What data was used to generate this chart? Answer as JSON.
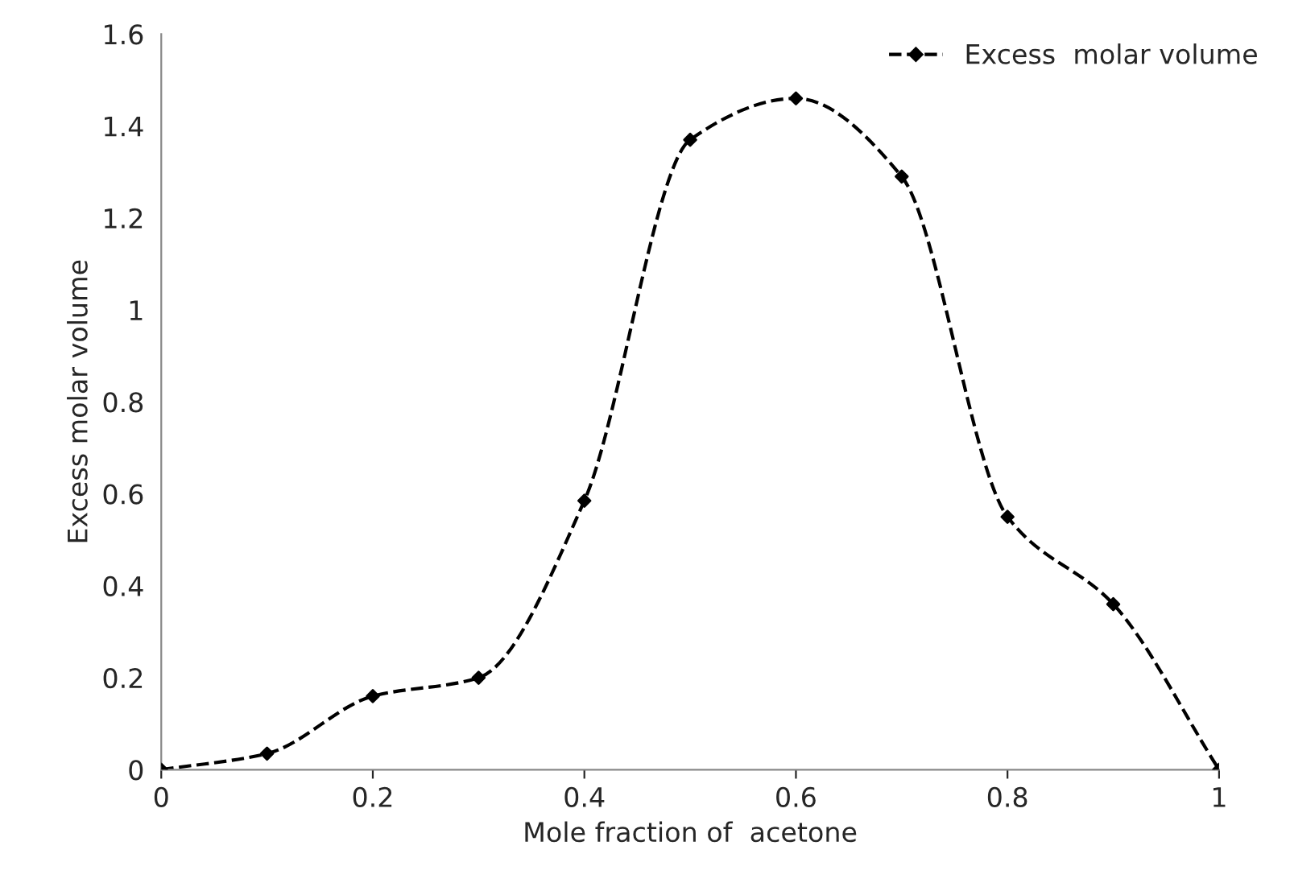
{
  "chart_data": {
    "type": "line",
    "xlabel": "Mole fraction of  acetone",
    "ylabel": "Excess molar volume",
    "x": [
      0,
      0.1,
      0.2,
      0.3,
      0.4,
      0.5,
      0.6,
      0.7,
      0.8,
      0.9,
      1
    ],
    "series": [
      {
        "name": "Excess  molar volume",
        "color": "#000000",
        "values": [
          0,
          0.035,
          0.16,
          0.2,
          0.585,
          1.37,
          1.46,
          1.29,
          0.55,
          0.36,
          0
        ]
      }
    ],
    "xlim": [
      0,
      1
    ],
    "xticks": [
      0,
      0.2,
      0.4,
      0.6,
      0.8,
      1
    ],
    "ylim": [
      0,
      1.6
    ],
    "yticks": [
      0,
      0.2,
      0.4,
      0.6,
      0.8,
      1,
      1.2,
      1.4,
      1.6
    ],
    "marker": "diamond",
    "line_style": "dashed",
    "grid": false,
    "legend": "top right"
  }
}
